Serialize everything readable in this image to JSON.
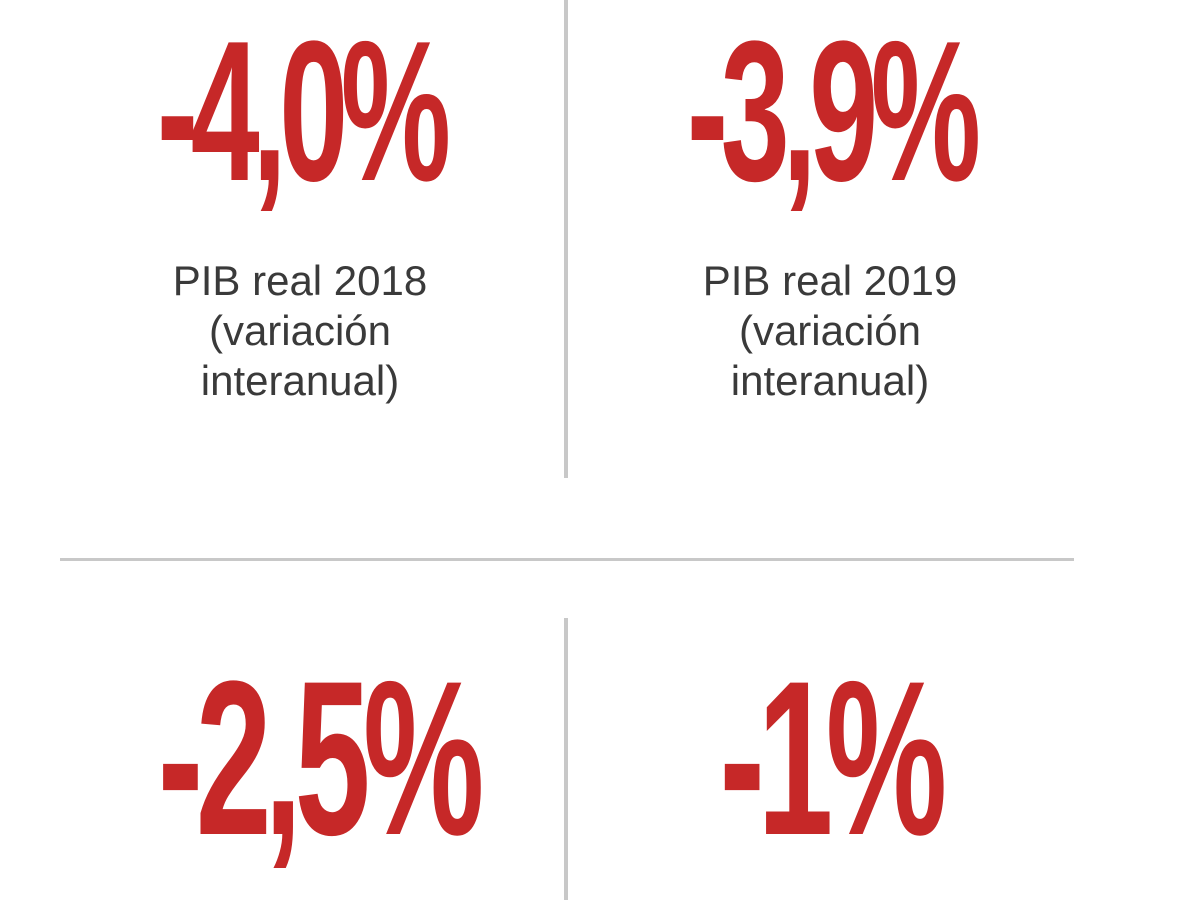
{
  "stats": [
    {
      "value": "-4,0%",
      "label_lines": [
        "PIB real 2018",
        "(variación",
        "interanual)"
      ]
    },
    {
      "value": "-3,9%",
      "label_lines": [
        "PIB real 2019",
        "(variación",
        "interanual)"
      ]
    },
    {
      "value": "-2,5%",
      "label_lines": []
    },
    {
      "value": "-1%",
      "label_lines": []
    }
  ],
  "colors": {
    "value_red": "#c62828",
    "label_gray": "#3a3a3a",
    "divider_gray": "#c8c8c8",
    "background": "#ffffff"
  }
}
